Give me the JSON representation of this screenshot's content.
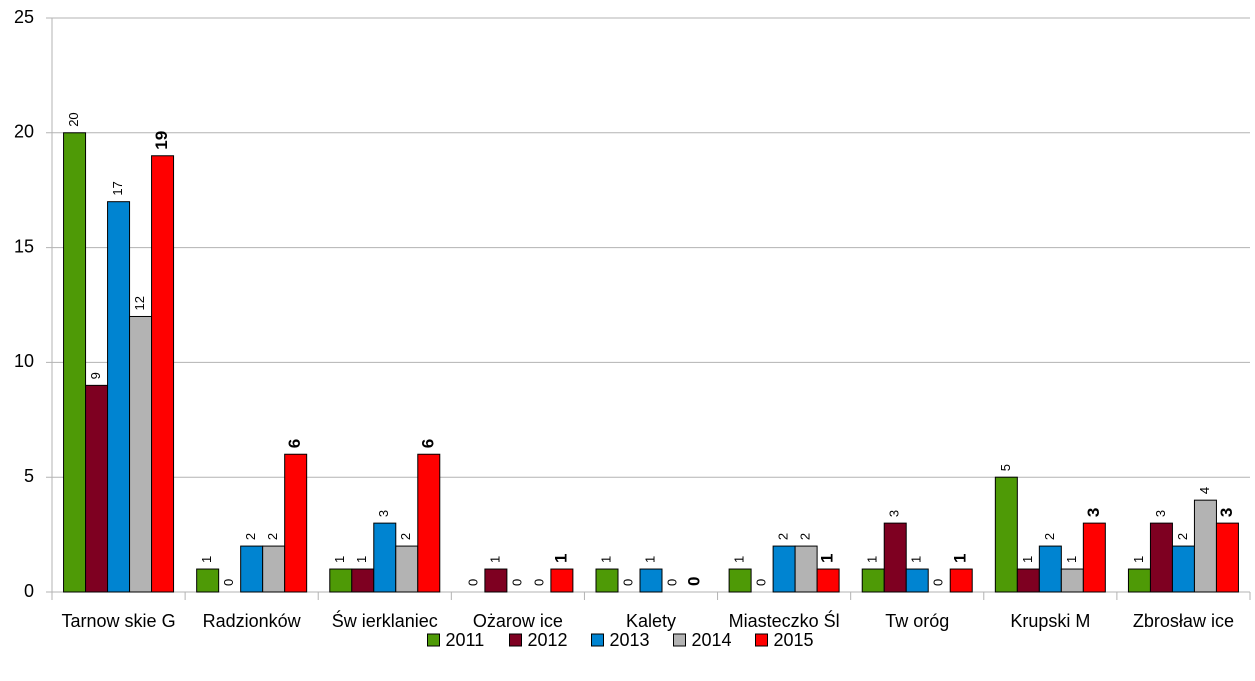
{
  "chart_data": {
    "type": "bar",
    "categories": [
      "Tarnow skie G",
      "Radzionków",
      "Św ierklaniec",
      "Ożarow ice",
      "Kalety",
      "Miasteczko Śl",
      "Tw oróg",
      "Krupski M",
      "Zbrosław ice"
    ],
    "series": [
      {
        "name": "2011",
        "color": "#4e9a06",
        "values": [
          20,
          1,
          1,
          0,
          1,
          1,
          1,
          5,
          1
        ]
      },
      {
        "name": "2012",
        "color": "#7e0021",
        "values": [
          9,
          0,
          1,
          1,
          0,
          0,
          3,
          1,
          3
        ]
      },
      {
        "name": "2013",
        "color": "#0084d1",
        "values": [
          17,
          2,
          3,
          0,
          1,
          2,
          1,
          2,
          2
        ]
      },
      {
        "name": "2014",
        "color": "#b3b3b3",
        "values": [
          12,
          2,
          2,
          0,
          0,
          2,
          0,
          1,
          4
        ]
      },
      {
        "name": "2015",
        "color": "#ff0000",
        "bold_labels": true,
        "values": [
          19,
          6,
          6,
          1,
          0,
          1,
          1,
          3,
          3
        ]
      }
    ],
    "ylim": [
      0,
      25
    ],
    "yticks": [
      0,
      5,
      10,
      15,
      20,
      25
    ],
    "grid": true,
    "legend": "bottom"
  }
}
